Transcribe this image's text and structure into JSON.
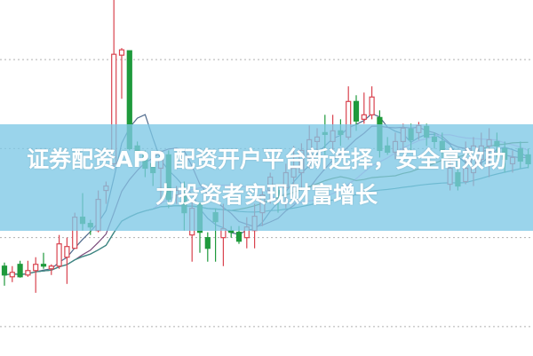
{
  "banner": {
    "line1": "证券配资APP 配资开户平台新选择，安全高效助",
    "line2": "力投资者实现财富增长"
  },
  "chart_data": {
    "type": "candlestick",
    "ylim": [
      0,
      40
    ],
    "grid": true,
    "gridlines": [
      3.2,
      13.2,
      23.2,
      33.2
    ],
    "colors": {
      "up": "#d9434f",
      "down": "#1f9a3c",
      "grid": "#b0b0b0"
    },
    "moving_averages": [
      {
        "period": 5,
        "color": "#4f6a8c"
      },
      {
        "period": 10,
        "color": "#7a4a7a"
      },
      {
        "period": 20,
        "color": "#e8a6e6"
      },
      {
        "period": 30,
        "color": "#4e7a3a"
      },
      {
        "period": 60,
        "color": "#3a8a8a"
      }
    ],
    "ohlc": [
      [
        10,
        9,
        10.4,
        7.8
      ],
      [
        8.8,
        9.3,
        10,
        8.2
      ],
      [
        10.2,
        8.8,
        10.6,
        8.7
      ],
      [
        9,
        9.5,
        10.6,
        8.8
      ],
      [
        9.5,
        10.2,
        11,
        7
      ],
      [
        10.2,
        10,
        11.5,
        9.7
      ],
      [
        9.7,
        10,
        10.2,
        9
      ],
      [
        10,
        12.5,
        13.5,
        9.7
      ],
      [
        11,
        12.2,
        13.2,
        8
      ],
      [
        12,
        15.5,
        16,
        12
      ],
      [
        15.5,
        14.8,
        18.2,
        14
      ],
      [
        14.8,
        14.4,
        15.2,
        13.5
      ],
      [
        14,
        17.5,
        18.5,
        13.8
      ],
      [
        18.5,
        19,
        19.5,
        17
      ],
      [
        21.5,
        33.8,
        40,
        21
      ],
      [
        33.7,
        34.3,
        34.5,
        28.8
      ],
      [
        34.2,
        23.2,
        34.2,
        23
      ],
      [
        23.5,
        22.8,
        24,
        22
      ],
      [
        22.5,
        21,
        23,
        20
      ],
      [
        21.5,
        20.5,
        22.5,
        19
      ],
      [
        21,
        22,
        23,
        17
      ],
      [
        22.5,
        17.5,
        23,
        16.5
      ],
      [
        18,
        18.5,
        19,
        17
      ],
      [
        18,
        16,
        19.5,
        14
      ],
      [
        13.5,
        16.5,
        17.2,
        10.5
      ],
      [
        17,
        13.8,
        17.2,
        11.5
      ],
      [
        13.2,
        12,
        13.8,
        10.5
      ],
      [
        16,
        15,
        16.5,
        10.5
      ],
      [
        13.2,
        14.2,
        17,
        10
      ],
      [
        14,
        13.8,
        14.5,
        13.2
      ],
      [
        13.8,
        12.8,
        14.5,
        12.5
      ],
      [
        13.2,
        14.4,
        15.5,
        12
      ],
      [
        14,
        15.6,
        17,
        12
      ],
      [
        16,
        18,
        18.5,
        14.5
      ],
      [
        18.5,
        20,
        20.5,
        17
      ],
      [
        18.5,
        17.8,
        19.2,
        16
      ],
      [
        18.8,
        20.5,
        21.5,
        16.5
      ],
      [
        20,
        21,
        23.5,
        18.5
      ],
      [
        20.5,
        23,
        23.8,
        18.5
      ],
      [
        22.2,
        24.2,
        25.8,
        21
      ],
      [
        24,
        24.5,
        25.5,
        22.8
      ],
      [
        25,
        24.8,
        27,
        22.5
      ],
      [
        24,
        25.2,
        27,
        23
      ],
      [
        25.2,
        24.8,
        26.5,
        23.5
      ],
      [
        24.5,
        28.5,
        30.2,
        24.2
      ],
      [
        28.5,
        26.3,
        29.2,
        25.2
      ],
      [
        26.5,
        27,
        29.5,
        26
      ],
      [
        27,
        29,
        30.2,
        26.5
      ],
      [
        26.7,
        23,
        27.5,
        22.2
      ],
      [
        23.5,
        22.8,
        24.5,
        22.5
      ],
      [
        22.8,
        24,
        25,
        22
      ],
      [
        24,
        25.5,
        26,
        23
      ],
      [
        25.4,
        24.2,
        26,
        23
      ],
      [
        25,
        25.8,
        26.2,
        24.2
      ],
      [
        25.7,
        24.5,
        26,
        23.5
      ],
      [
        24.5,
        24,
        25,
        23.2
      ],
      [
        24,
        23,
        25,
        22
      ],
      [
        19.2,
        21,
        22,
        18.5
      ],
      [
        20.5,
        19,
        22.5,
        18.5
      ],
      [
        19.5,
        21,
        24,
        19.2
      ],
      [
        20.5,
        23.5,
        24.5,
        19
      ],
      [
        22,
        23.5,
        25,
        21
      ],
      [
        23.5,
        24.2,
        25.5,
        20
      ],
      [
        24,
        23.5,
        25,
        22
      ],
      [
        23.2,
        22,
        24,
        20.5
      ],
      [
        21.5,
        22.2,
        23,
        20.5
      ],
      [
        23.2,
        21.8,
        24,
        21
      ],
      [
        22.5,
        21.5,
        23.2,
        21
      ]
    ]
  }
}
